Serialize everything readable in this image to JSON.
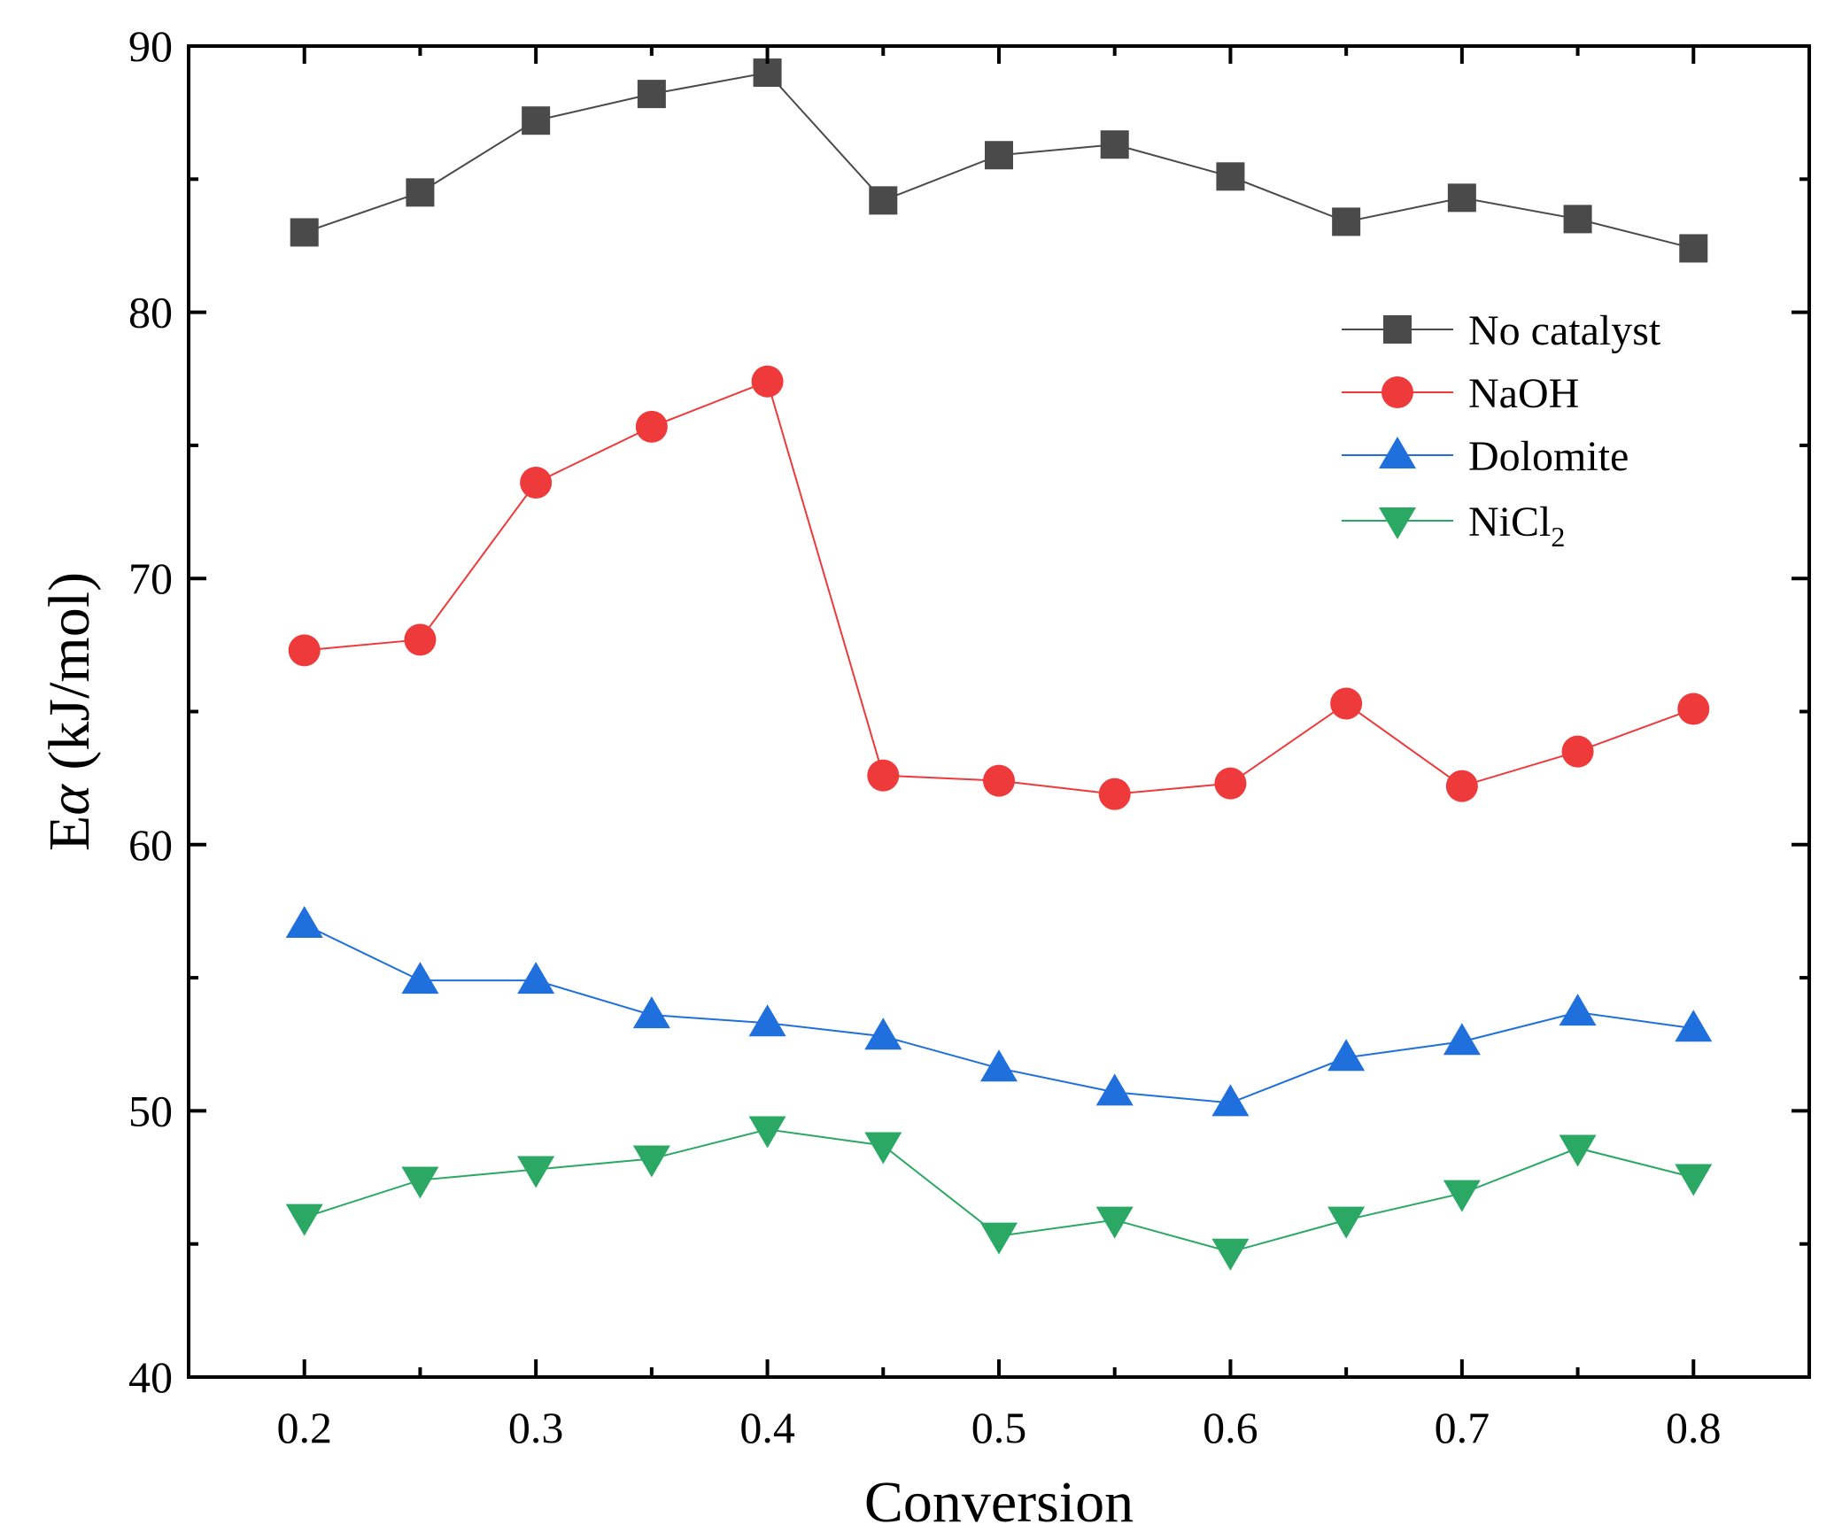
{
  "chart_data": {
    "type": "line",
    "xlabel": "Conversion",
    "ylabel_main": "E",
    "ylabel_symbol": "α",
    "ylabel_unit": " (kJ/mol)",
    "xlim": [
      0.15,
      0.85
    ],
    "ylim": [
      40,
      90
    ],
    "x_ticks": [
      0.2,
      0.3,
      0.4,
      0.5,
      0.6,
      0.7,
      0.8
    ],
    "x_tick_labels": [
      "0.2",
      "0.3",
      "0.4",
      "0.5",
      "0.6",
      "0.7",
      "0.8"
    ],
    "y_ticks": [
      40,
      50,
      60,
      70,
      80,
      90
    ],
    "y_tick_labels": [
      "40",
      "50",
      "60",
      "70",
      "80",
      "90"
    ],
    "grid": false,
    "legend_position": "top-right",
    "x": [
      0.2,
      0.25,
      0.3,
      0.35,
      0.4,
      0.45,
      0.5,
      0.55,
      0.6,
      0.65,
      0.7,
      0.75,
      0.8
    ],
    "series": [
      {
        "name": "No catalyst",
        "name_sub": "",
        "marker": "square",
        "color": "#4a4a4a",
        "values": [
          83.0,
          84.5,
          87.2,
          88.2,
          89.0,
          84.2,
          85.9,
          86.3,
          85.1,
          83.4,
          84.3,
          83.5,
          82.4
        ]
      },
      {
        "name": "NaOH",
        "name_sub": "",
        "marker": "circle",
        "color": "#ee3a3a",
        "values": [
          67.3,
          67.7,
          73.6,
          75.7,
          77.4,
          62.6,
          62.4,
          61.9,
          62.3,
          65.3,
          62.2,
          63.5,
          65.1
        ]
      },
      {
        "name": "Dolomite",
        "name_sub": "",
        "marker": "triangle-up",
        "color": "#1f6fdc",
        "values": [
          57.0,
          54.9,
          54.9,
          53.6,
          53.3,
          52.8,
          51.6,
          50.7,
          50.3,
          52.0,
          52.6,
          53.7,
          53.1
        ]
      },
      {
        "name": "NiCl",
        "name_sub": "2",
        "marker": "triangle-down",
        "color": "#2ba864",
        "values": [
          46.0,
          47.4,
          47.8,
          48.2,
          49.3,
          48.7,
          45.3,
          45.9,
          44.7,
          45.9,
          46.9,
          48.6,
          47.5
        ]
      }
    ]
  }
}
